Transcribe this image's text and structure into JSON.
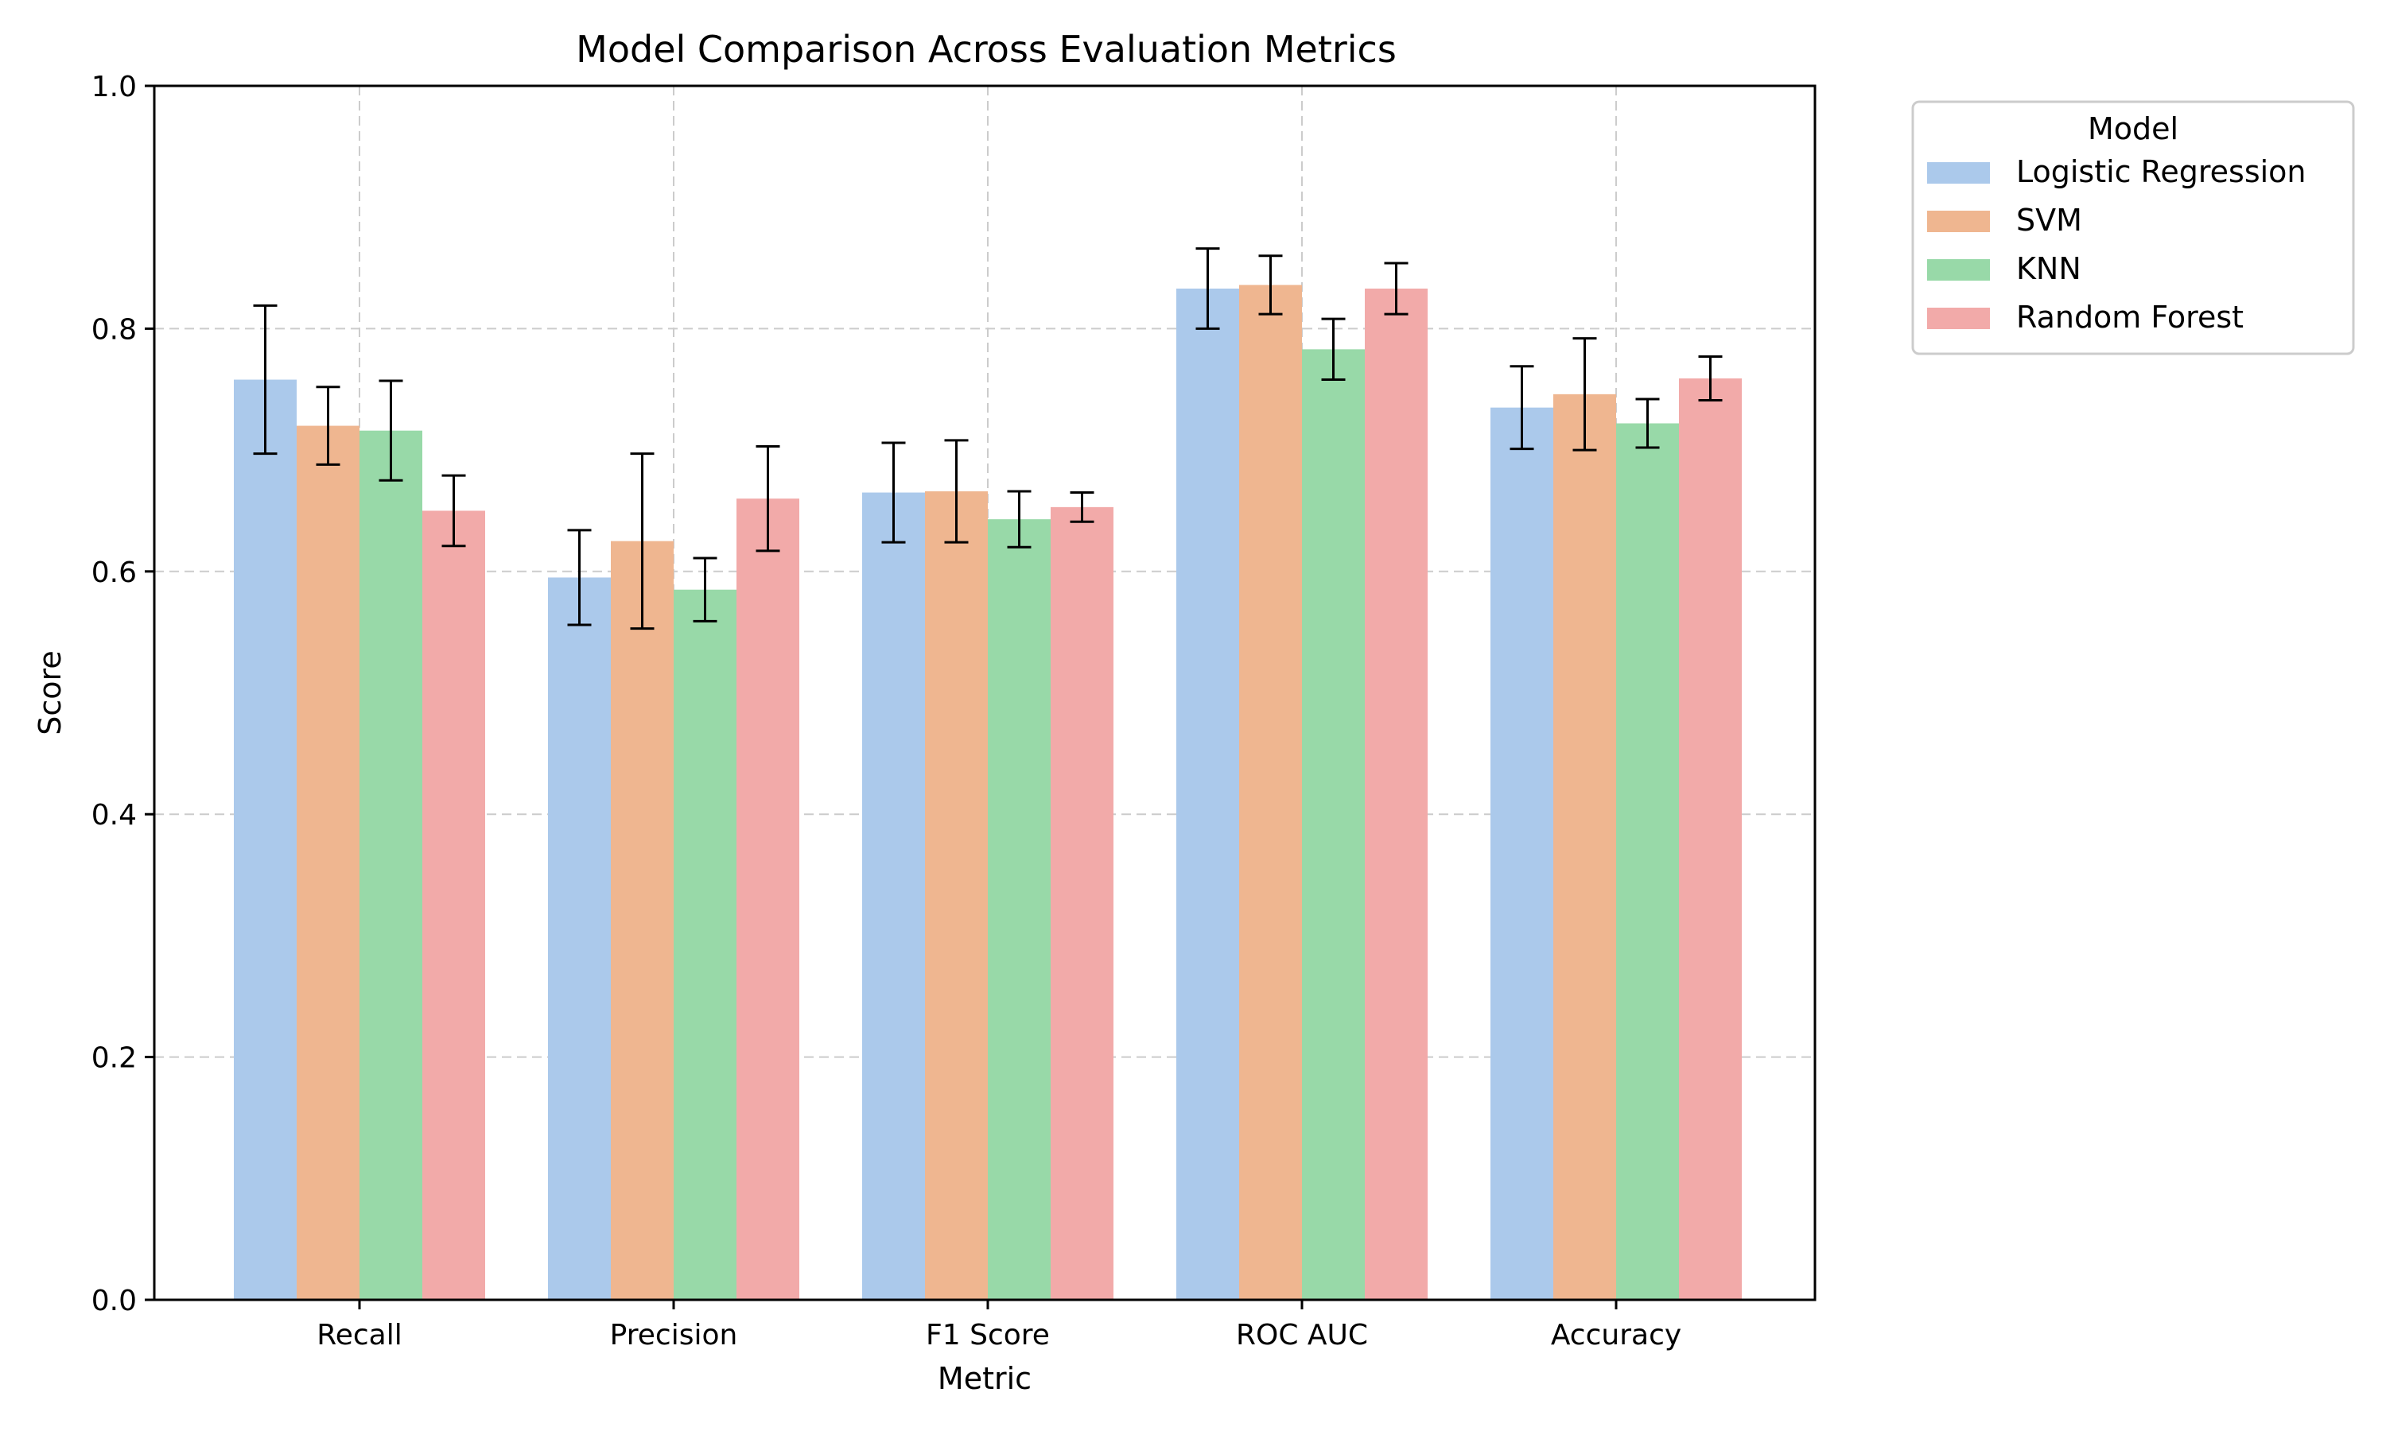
{
  "chart_data": {
    "type": "bar",
    "title": "Model Comparison Across Evaluation Metrics",
    "xlabel": "Metric",
    "ylabel": "Score",
    "ylim": [
      0,
      1.0
    ],
    "yticks": [
      "0.0",
      "0.2",
      "0.4",
      "0.6",
      "0.8",
      "1.0"
    ],
    "grid": true,
    "legend": {
      "title": "Model",
      "placement": "outside upper right"
    },
    "categories": [
      "Recall",
      "Precision",
      "F1 Score",
      "ROC AUC",
      "Accuracy"
    ],
    "series": [
      {
        "name": "Logistic Regression",
        "color": "#abc9eb",
        "values": [
          0.758,
          0.595,
          0.665,
          0.833,
          0.735
        ],
        "errors": [
          0.061,
          0.039,
          0.041,
          0.033,
          0.034
        ]
      },
      {
        "name": "SVM",
        "color": "#efb690",
        "values": [
          0.72,
          0.625,
          0.666,
          0.836,
          0.746
        ],
        "errors": [
          0.032,
          0.072,
          0.042,
          0.024,
          0.046
        ]
      },
      {
        "name": "KNN",
        "color": "#98d9a8",
        "values": [
          0.716,
          0.585,
          0.643,
          0.783,
          0.722
        ],
        "errors": [
          0.041,
          0.026,
          0.023,
          0.025,
          0.02
        ]
      },
      {
        "name": "Random Forest",
        "color": "#f2aaa9",
        "values": [
          0.65,
          0.66,
          0.653,
          0.833,
          0.759
        ],
        "errors": [
          0.029,
          0.043,
          0.012,
          0.021,
          0.018
        ]
      }
    ]
  }
}
